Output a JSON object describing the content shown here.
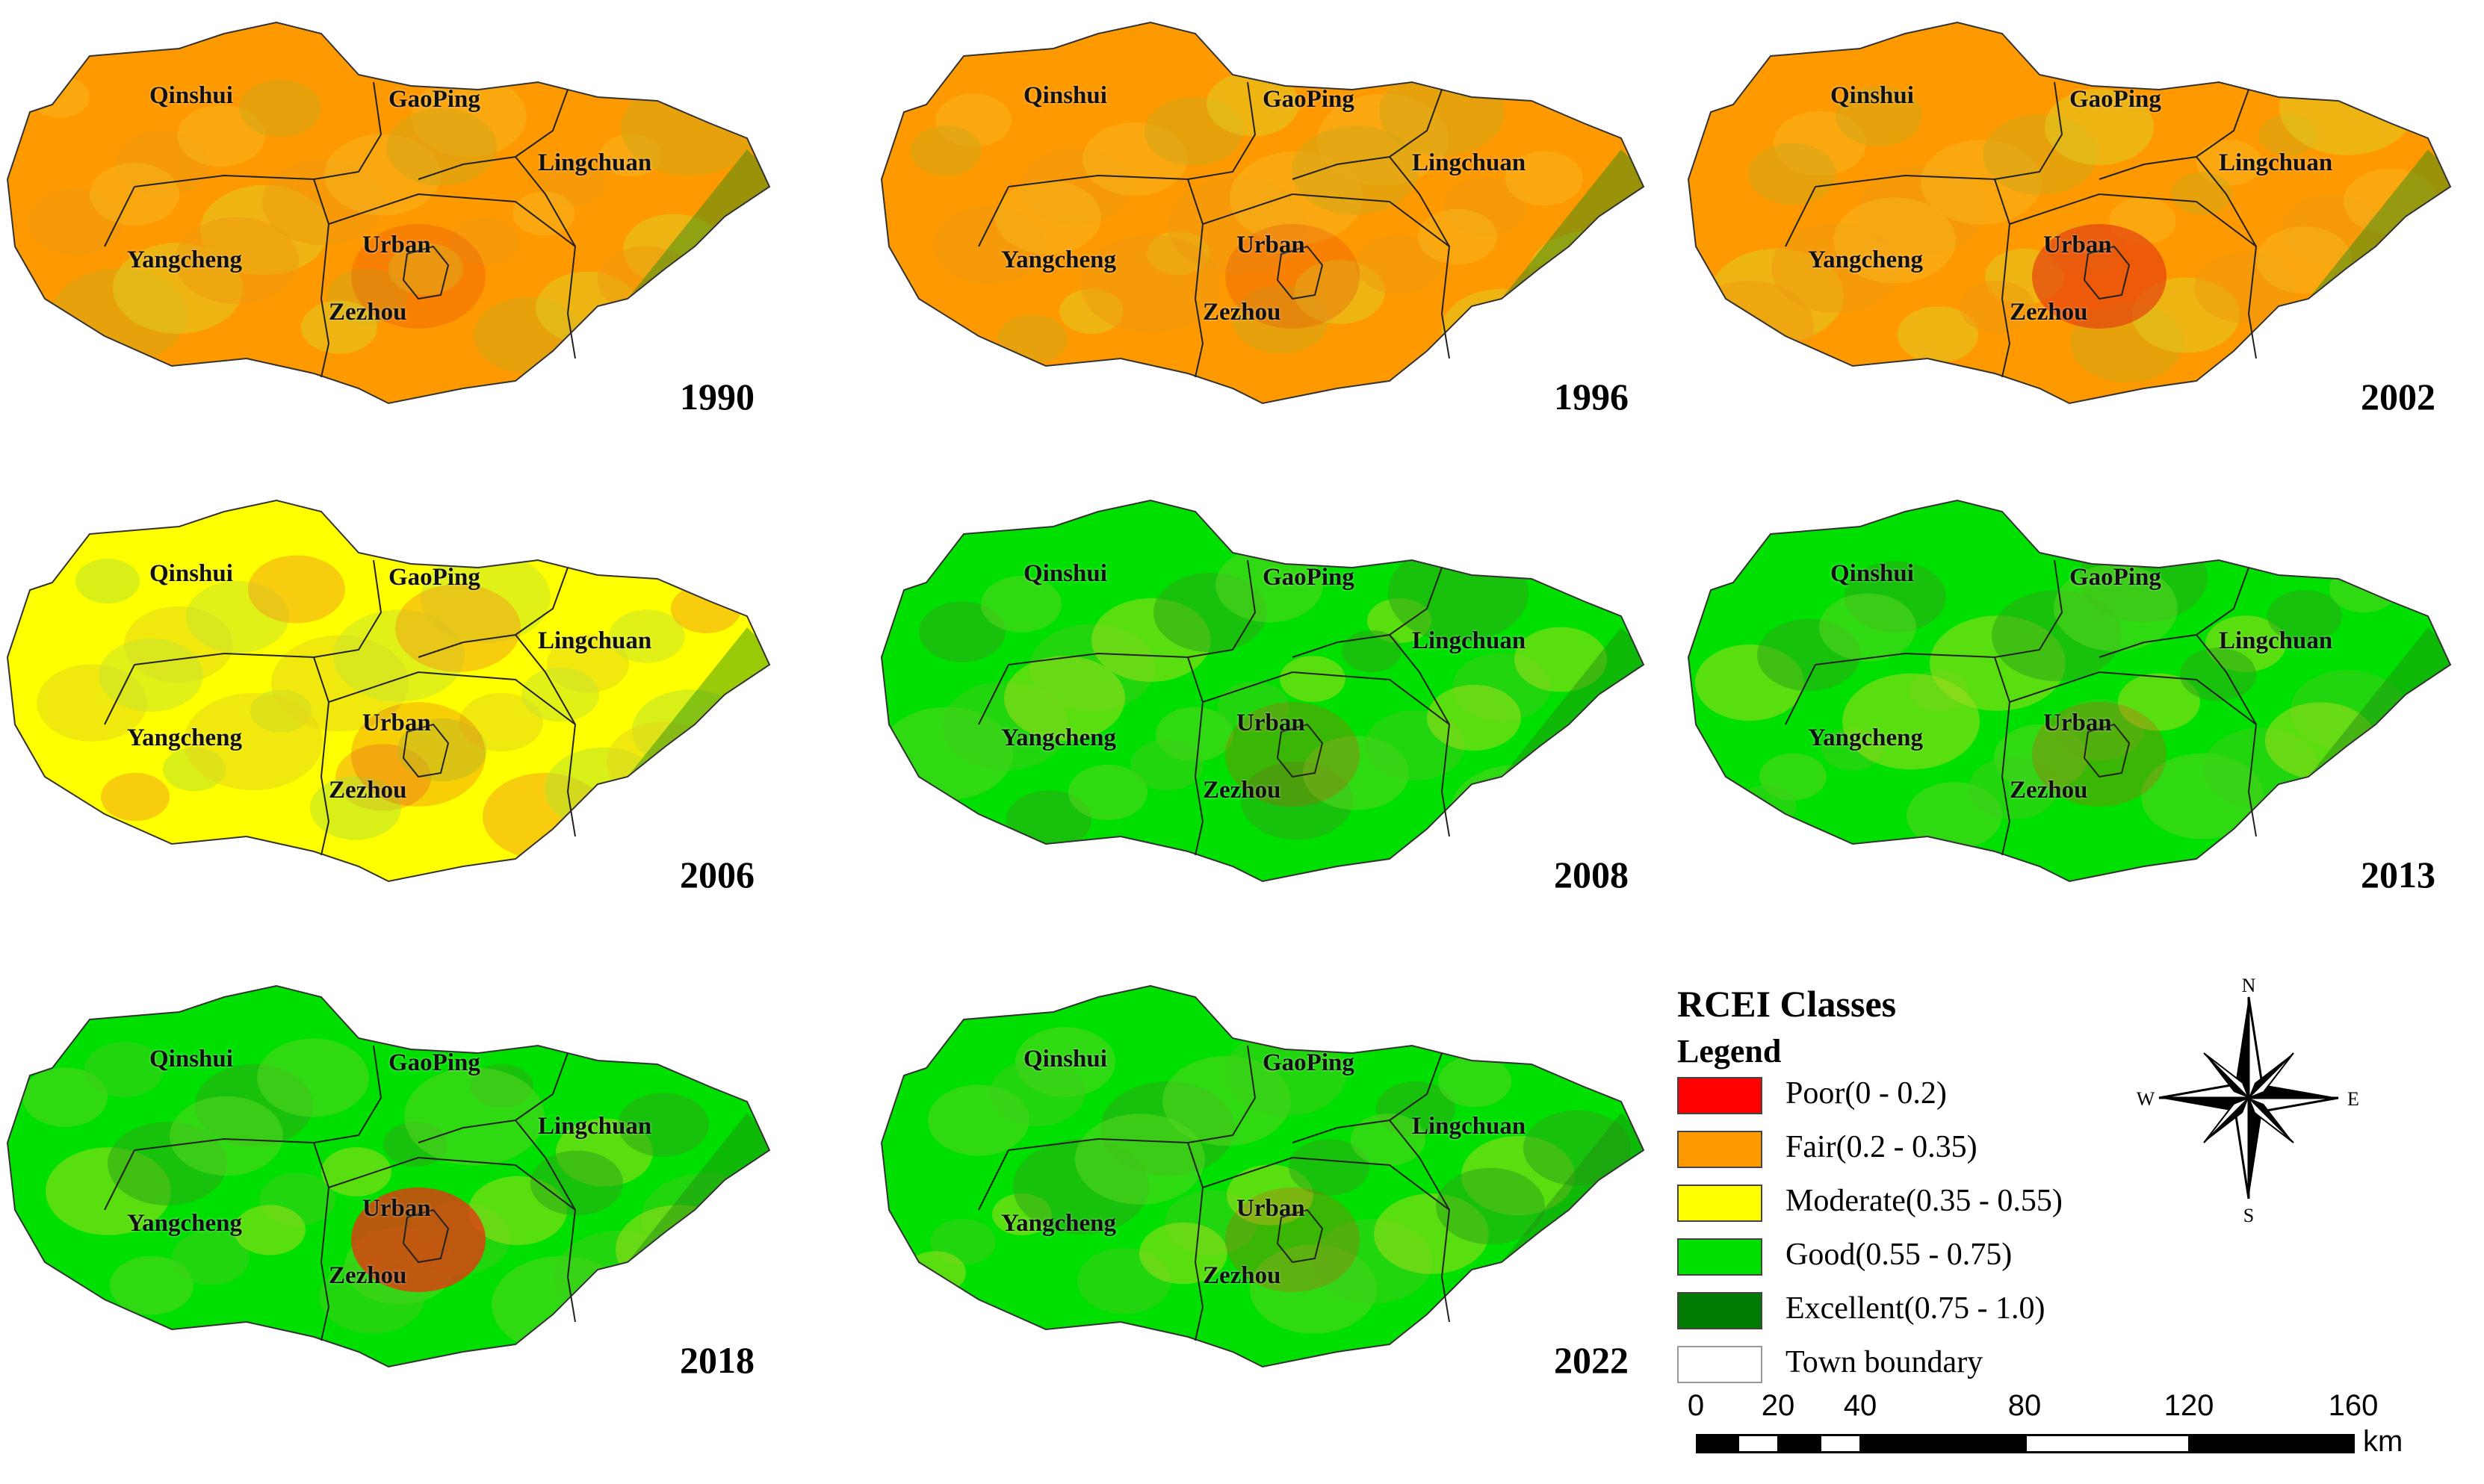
{
  "panels": [
    {
      "year": "1990",
      "towns": [
        "Qinshui",
        "GaoPing",
        "Lingchuan",
        "Yangcheng",
        "Urban",
        "Zezhou"
      ],
      "dominant_class": "Fair"
    },
    {
      "year": "1996",
      "towns": [
        "Qinshui",
        "GaoPing",
        "Lingchuan",
        "Yangcheng",
        "Urban",
        "Zezhou"
      ],
      "dominant_class": "Fair"
    },
    {
      "year": "2002",
      "towns": [
        "Qinshui",
        "GaoPing",
        "Lingchuan",
        "Yangcheng",
        "Urban",
        "Zezhou"
      ],
      "dominant_class": "Fair"
    },
    {
      "year": "2006",
      "towns": [
        "Qinshui",
        "GaoPing",
        "Lingchuan",
        "Yangcheng",
        "Urban",
        "Zezhou"
      ],
      "dominant_class": "Moderate"
    },
    {
      "year": "2008",
      "towns": [
        "Qinshui",
        "GaoPing",
        "Lingchuan",
        "Yangcheng",
        "Urban",
        "Zezhou"
      ],
      "dominant_class": "Good"
    },
    {
      "year": "2013",
      "towns": [
        "Qinshui",
        "GaoPing",
        "Lingchuan",
        "Yangcheng",
        "Urban",
        "Zezhou"
      ],
      "dominant_class": "Good"
    },
    {
      "year": "2018",
      "towns": [
        "Qinshui",
        "GaoPing",
        "Lingchuan",
        "Yangcheng",
        "Urban",
        "Zezhou"
      ],
      "dominant_class": "Good"
    },
    {
      "year": "2022",
      "towns": [
        "Qinshui",
        "GaoPing",
        "Lingchuan",
        "Yangcheng",
        "Urban",
        "Zezhou"
      ],
      "dominant_class": "Good"
    }
  ],
  "legend": {
    "title": "RCEI Classes",
    "subtitle": "Legend",
    "items": [
      {
        "label": "Poor(0 - 0.2)",
        "color": "#ff0000"
      },
      {
        "label": "Fair(0.2 - 0.35)",
        "color": "#ff9900"
      },
      {
        "label": "Moderate(0.35 - 0.55)",
        "color": "#ffff00"
      },
      {
        "label": "Good(0.55 - 0.75)",
        "color": "#00e000"
      },
      {
        "label": "Excellent(0.75 - 1.0)",
        "color": "#007a00"
      },
      {
        "label": "Town boundary",
        "color": "#ffffff"
      }
    ]
  },
  "compass": {
    "n": "N",
    "s": "S",
    "e": "E",
    "w": "W"
  },
  "scale": {
    "ticks": [
      "0",
      "20",
      "40",
      "80",
      "120",
      "160"
    ],
    "unit": "km"
  }
}
